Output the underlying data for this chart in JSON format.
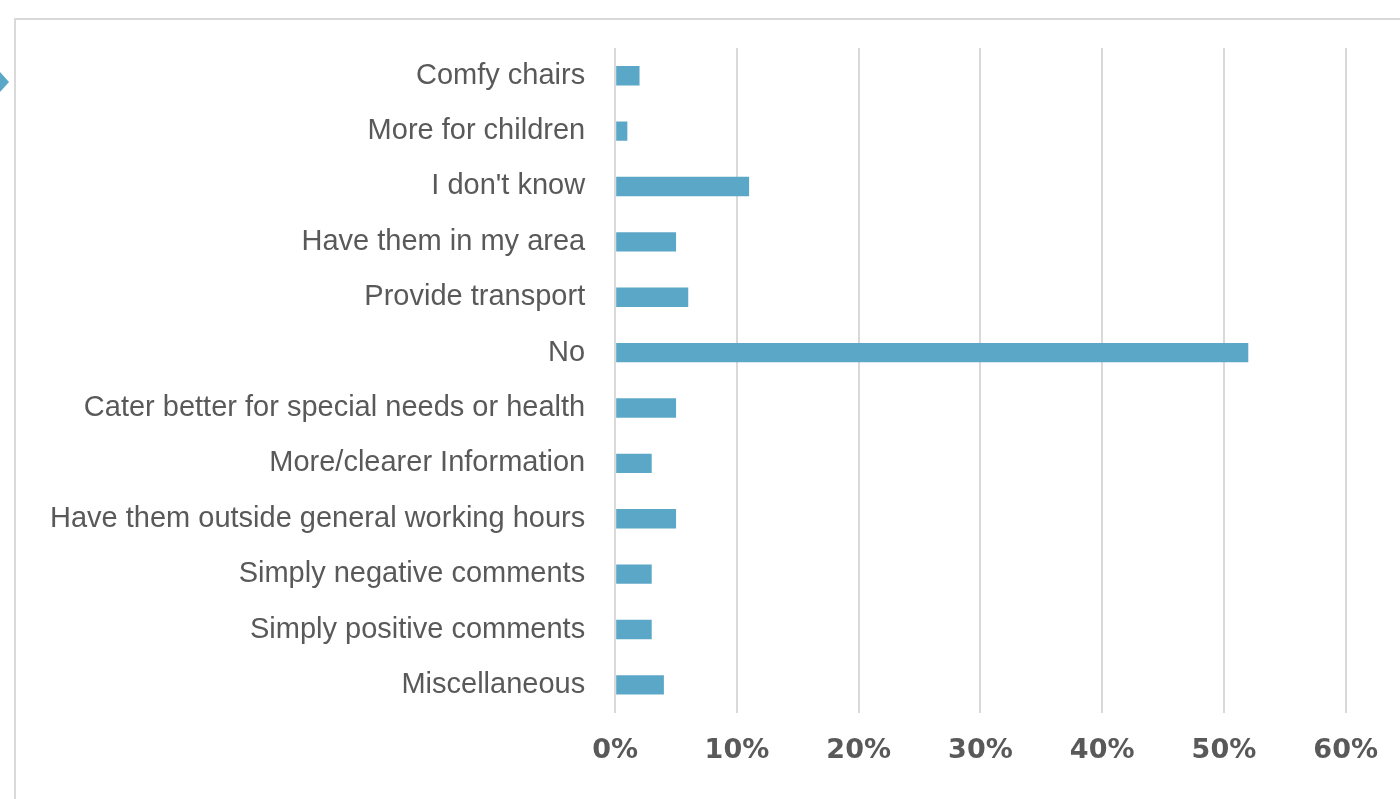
{
  "chart_data": {
    "type": "bar",
    "orientation": "horizontal",
    "categories": [
      "Comfy chairs",
      "More for children",
      "I don't know",
      "Have them in my area",
      "Provide transport",
      "No",
      "Cater better for special needs or health",
      "More/clearer Information",
      "Have them outside general working hours",
      "Simply negative comments",
      "Simply positive comments",
      "Miscellaneous"
    ],
    "values": [
      2,
      1,
      11,
      5,
      6,
      52,
      5,
      3,
      5,
      3,
      3,
      4
    ],
    "color": "#5ba7c7",
    "xlim": [
      0,
      60
    ],
    "xticks": [
      {
        "value": 0,
        "label": "0%"
      },
      {
        "value": 10,
        "label": "10%"
      },
      {
        "value": 20,
        "label": "20%"
      },
      {
        "value": 30,
        "label": "30%"
      },
      {
        "value": 40,
        "label": "40%"
      },
      {
        "value": 50,
        "label": "50%"
      },
      {
        "value": 60,
        "label": "60%"
      }
    ],
    "grid": "x",
    "legend": false
  }
}
